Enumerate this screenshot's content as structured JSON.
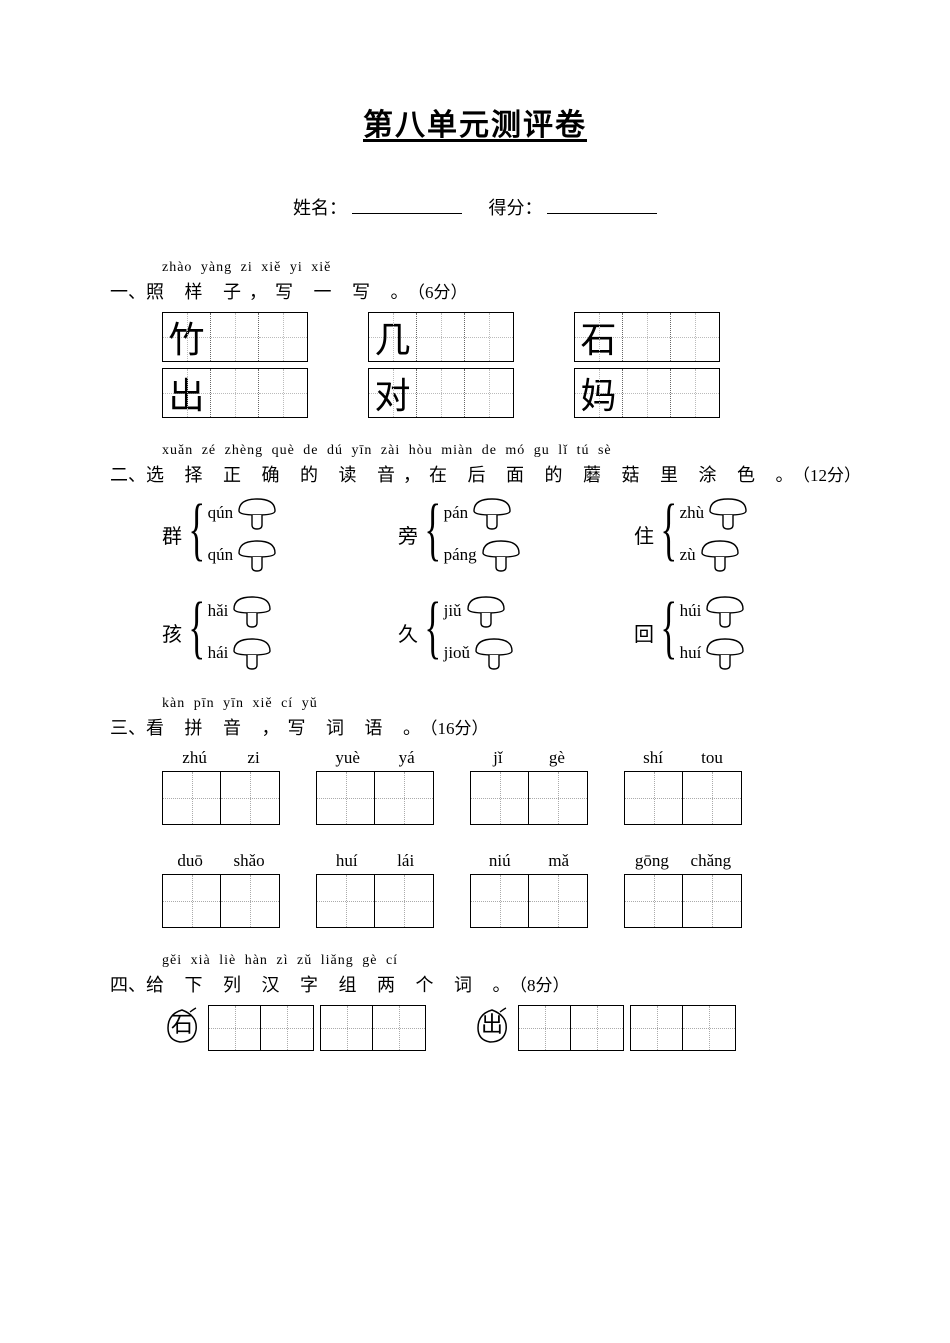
{
  "title": "第八单元测评卷",
  "header": {
    "name_label": "姓名：",
    "score_label": "得分："
  },
  "section1": {
    "pinyin": "zhào yàng zi   xiě yi xiě",
    "number": "一、",
    "heading": "照 样 子，写 一 写 。",
    "points": "（6分）",
    "rows": [
      [
        "竹",
        "几",
        "石"
      ],
      [
        "出",
        "对",
        "妈"
      ]
    ],
    "blank_cells_per_char": 3
  },
  "section2": {
    "pinyin": "xuǎn zé zhèng què de dú yīn   zài hòu miàn de mó gu lǐ tú sè",
    "number": "二、",
    "heading": "选 择 正 确 的 读 音，在 后 面 的 蘑 菇 里 涂 色 。",
    "points": "（12分）",
    "items": [
      {
        "char": "群",
        "opts": [
          "qún",
          "qún"
        ]
      },
      {
        "char": "旁",
        "opts": [
          "pán",
          "páng"
        ]
      },
      {
        "char": "住",
        "opts": [
          "zhù",
          "zù"
        ]
      },
      {
        "char": "孩",
        "opts": [
          "hǎi",
          "hái"
        ]
      },
      {
        "char": "久",
        "opts": [
          "jiǔ",
          "jioǔ"
        ]
      },
      {
        "char": "回",
        "opts": [
          "húi",
          "huí"
        ]
      }
    ]
  },
  "section3": {
    "pinyin": "kàn pīn yīn   xiě cí yǔ",
    "number": "三、",
    "heading": "看 拼 音 ，写 词 语 。",
    "points": "（16分）",
    "words": [
      [
        "zhú",
        "zi"
      ],
      [
        "yuè",
        "yá"
      ],
      [
        "jǐ",
        "gè"
      ],
      [
        "shí",
        "tou"
      ],
      [
        "duō",
        "shǎo"
      ],
      [
        "huí",
        "lái"
      ],
      [
        "niú",
        "mǎ"
      ],
      [
        "gōng",
        "chǎng"
      ]
    ]
  },
  "section4": {
    "pinyin": "gěi xià liè hàn zì zǔ liǎng gè cí",
    "number": "四、",
    "heading": "给 下 列 汉 字 组 两 个 词 。",
    "points": "（8分）",
    "chars": [
      "石",
      "出"
    ]
  },
  "colors": {
    "text": "#000000",
    "page_bg": "#ffffff",
    "dotted": "#bbbbbb"
  }
}
